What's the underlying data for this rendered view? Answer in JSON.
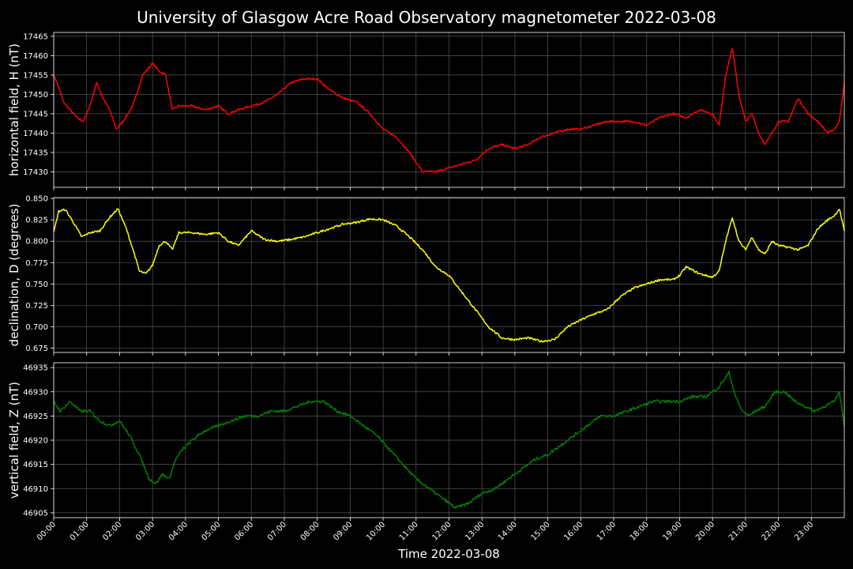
{
  "title": "University of Glasgow Acre Road Observatory magnetometer 2022-03-08",
  "xlabel": "Time 2022-03-08",
  "x_tick_labels": [
    "00:00",
    "01:00",
    "02:00",
    "03:00",
    "04:00",
    "05:00",
    "06:00",
    "07:00",
    "08:00",
    "09:00",
    "10:00",
    "11:00",
    "12:00",
    "13:00",
    "14:00",
    "15:00",
    "16:00",
    "17:00",
    "18:00",
    "19:00",
    "20:00",
    "21:00",
    "22:00",
    "23:00"
  ],
  "chart_data": [
    {
      "type": "line",
      "ylabel": "horizontal field, H (nT)",
      "color": "#ff0000",
      "ylim": [
        17426,
        17466
      ],
      "yticks": [
        17430,
        17435,
        17440,
        17445,
        17450,
        17455,
        17460,
        17465
      ],
      "grid": true,
      "x_hours": [
        0,
        0.1,
        0.3,
        0.5,
        0.7,
        0.9,
        1.1,
        1.3,
        1.5,
        1.7,
        1.9,
        2.1,
        2.4,
        2.7,
        3.0,
        3.2,
        3.4,
        3.6,
        3.8,
        4.2,
        4.6,
        5.0,
        5.3,
        5.6,
        6.0,
        6.4,
        6.8,
        7.2,
        7.6,
        8.0,
        8.4,
        8.8,
        9.2,
        9.6,
        10.0,
        10.4,
        10.8,
        11.2,
        11.6,
        12.0,
        12.4,
        12.8,
        13.2,
        13.6,
        14.0,
        14.4,
        14.8,
        15.2,
        15.6,
        16.0,
        16.4,
        16.8,
        17.2,
        17.6,
        18.0,
        18.4,
        18.8,
        19.2,
        19.6,
        20.0,
        20.2,
        20.4,
        20.6,
        20.8,
        21.0,
        21.2,
        21.4,
        21.6,
        21.8,
        22.0,
        22.3,
        22.6,
        22.9,
        23.2,
        23.5,
        23.7,
        23.85,
        24.0
      ],
      "values": [
        17455,
        17453,
        17448,
        17446,
        17444,
        17443,
        17447,
        17453,
        17449,
        17446,
        17441,
        17443,
        17447,
        17455,
        17458,
        17456,
        17455,
        17446,
        17447,
        17447,
        17446,
        17447,
        17445,
        17446,
        17447,
        17448,
        17450,
        17453,
        17454,
        17454,
        17451,
        17449,
        17448,
        17445,
        17441,
        17439,
        17435,
        17430,
        17430,
        17431,
        17432,
        17433,
        17436,
        17437,
        17436,
        17437,
        17439,
        17440,
        17441,
        17441,
        17442,
        17443,
        17443,
        17443,
        17442,
        17444,
        17445,
        17444,
        17446,
        17445,
        17442,
        17455,
        17462,
        17450,
        17443,
        17445,
        17440,
        17437,
        17440,
        17443,
        17443,
        17449,
        17445,
        17443,
        17440,
        17441,
        17443,
        17453
      ]
    },
    {
      "type": "line",
      "ylabel": "declination, D (degrees)",
      "color": "#ffff00",
      "ylim": [
        0.67,
        0.851
      ],
      "yticks": [
        0.675,
        0.7,
        0.725,
        0.75,
        0.775,
        0.8,
        0.825,
        0.85
      ],
      "ytick_labels": [
        "0.675",
        "0.700",
        "0.725",
        "0.750",
        "0.775",
        "0.800",
        "0.825",
        "0.850"
      ],
      "grid": true,
      "x_hours": [
        0,
        0.15,
        0.35,
        0.6,
        0.85,
        1.1,
        1.4,
        1.7,
        1.95,
        2.2,
        2.45,
        2.6,
        2.8,
        3.0,
        3.2,
        3.4,
        3.6,
        3.8,
        4.2,
        4.6,
        5.0,
        5.3,
        5.6,
        6.0,
        6.4,
        6.8,
        7.2,
        7.6,
        8.0,
        8.4,
        8.8,
        9.2,
        9.6,
        10.0,
        10.4,
        10.8,
        11.2,
        11.6,
        12.0,
        12.4,
        12.8,
        13.2,
        13.6,
        14.0,
        14.4,
        14.8,
        15.2,
        15.6,
        16.0,
        16.4,
        16.8,
        17.2,
        17.6,
        18.0,
        18.4,
        18.8,
        19.0,
        19.2,
        19.6,
        20.0,
        20.2,
        20.4,
        20.6,
        20.8,
        21.0,
        21.2,
        21.4,
        21.6,
        21.8,
        22.0,
        22.3,
        22.6,
        22.9,
        23.2,
        23.5,
        23.7,
        23.85,
        24.0
      ],
      "values": [
        0.81,
        0.835,
        0.837,
        0.822,
        0.805,
        0.81,
        0.812,
        0.828,
        0.838,
        0.815,
        0.785,
        0.765,
        0.762,
        0.772,
        0.795,
        0.8,
        0.79,
        0.81,
        0.81,
        0.808,
        0.81,
        0.8,
        0.795,
        0.812,
        0.802,
        0.8,
        0.802,
        0.805,
        0.81,
        0.815,
        0.82,
        0.822,
        0.826,
        0.825,
        0.818,
        0.805,
        0.79,
        0.77,
        0.76,
        0.74,
        0.72,
        0.7,
        0.687,
        0.685,
        0.687,
        0.683,
        0.685,
        0.7,
        0.708,
        0.715,
        0.72,
        0.735,
        0.745,
        0.75,
        0.755,
        0.755,
        0.76,
        0.77,
        0.762,
        0.758,
        0.765,
        0.8,
        0.828,
        0.8,
        0.79,
        0.805,
        0.79,
        0.785,
        0.8,
        0.795,
        0.793,
        0.79,
        0.795,
        0.815,
        0.825,
        0.83,
        0.838,
        0.812
      ]
    },
    {
      "type": "line",
      "ylabel": "vertical field, Z (nT)",
      "color": "#008000",
      "ylim": [
        46904,
        46936
      ],
      "yticks": [
        46905,
        46910,
        46915,
        46920,
        46925,
        46930,
        46935
      ],
      "grid": true,
      "x_hours": [
        0,
        0.2,
        0.5,
        0.8,
        1.1,
        1.4,
        1.7,
        2.0,
        2.3,
        2.6,
        2.9,
        3.1,
        3.3,
        3.5,
        3.7,
        3.9,
        4.2,
        4.6,
        5.0,
        5.4,
        5.8,
        6.2,
        6.6,
        7.0,
        7.4,
        7.8,
        8.2,
        8.6,
        9.0,
        9.4,
        9.8,
        10.2,
        10.6,
        11.0,
        11.4,
        11.8,
        12.2,
        12.6,
        13.0,
        13.4,
        13.8,
        14.2,
        14.6,
        15.0,
        15.4,
        15.8,
        16.2,
        16.6,
        17.0,
        17.4,
        17.8,
        18.2,
        18.6,
        19.0,
        19.4,
        19.8,
        20.0,
        20.2,
        20.5,
        20.7,
        20.9,
        21.1,
        21.3,
        21.6,
        21.9,
        22.2,
        22.5,
        22.8,
        23.1,
        23.4,
        23.7,
        23.85,
        24.0
      ],
      "values": [
        46928,
        46926,
        46928,
        46926,
        46926,
        46924,
        46923,
        46924,
        46921,
        46917,
        46912,
        46911,
        46913,
        46912,
        46916,
        46918,
        46920,
        46922,
        46923,
        46924,
        46925,
        46925,
        46926,
        46926,
        46927,
        46928,
        46928,
        46926,
        46925,
        46923,
        46921,
        46918,
        46915,
        46912,
        46910,
        46908,
        46906,
        46907,
        46909,
        46910,
        46912,
        46914,
        46916,
        46917,
        46919,
        46921,
        46923,
        46925,
        46925,
        46926,
        46927,
        46928,
        46928,
        46928,
        46929,
        46929,
        46930,
        46931,
        46934,
        46929,
        46926,
        46925,
        46926,
        46927,
        46930,
        46930,
        46928,
        46927,
        46926,
        46927,
        46928,
        46930,
        46923
      ]
    }
  ]
}
